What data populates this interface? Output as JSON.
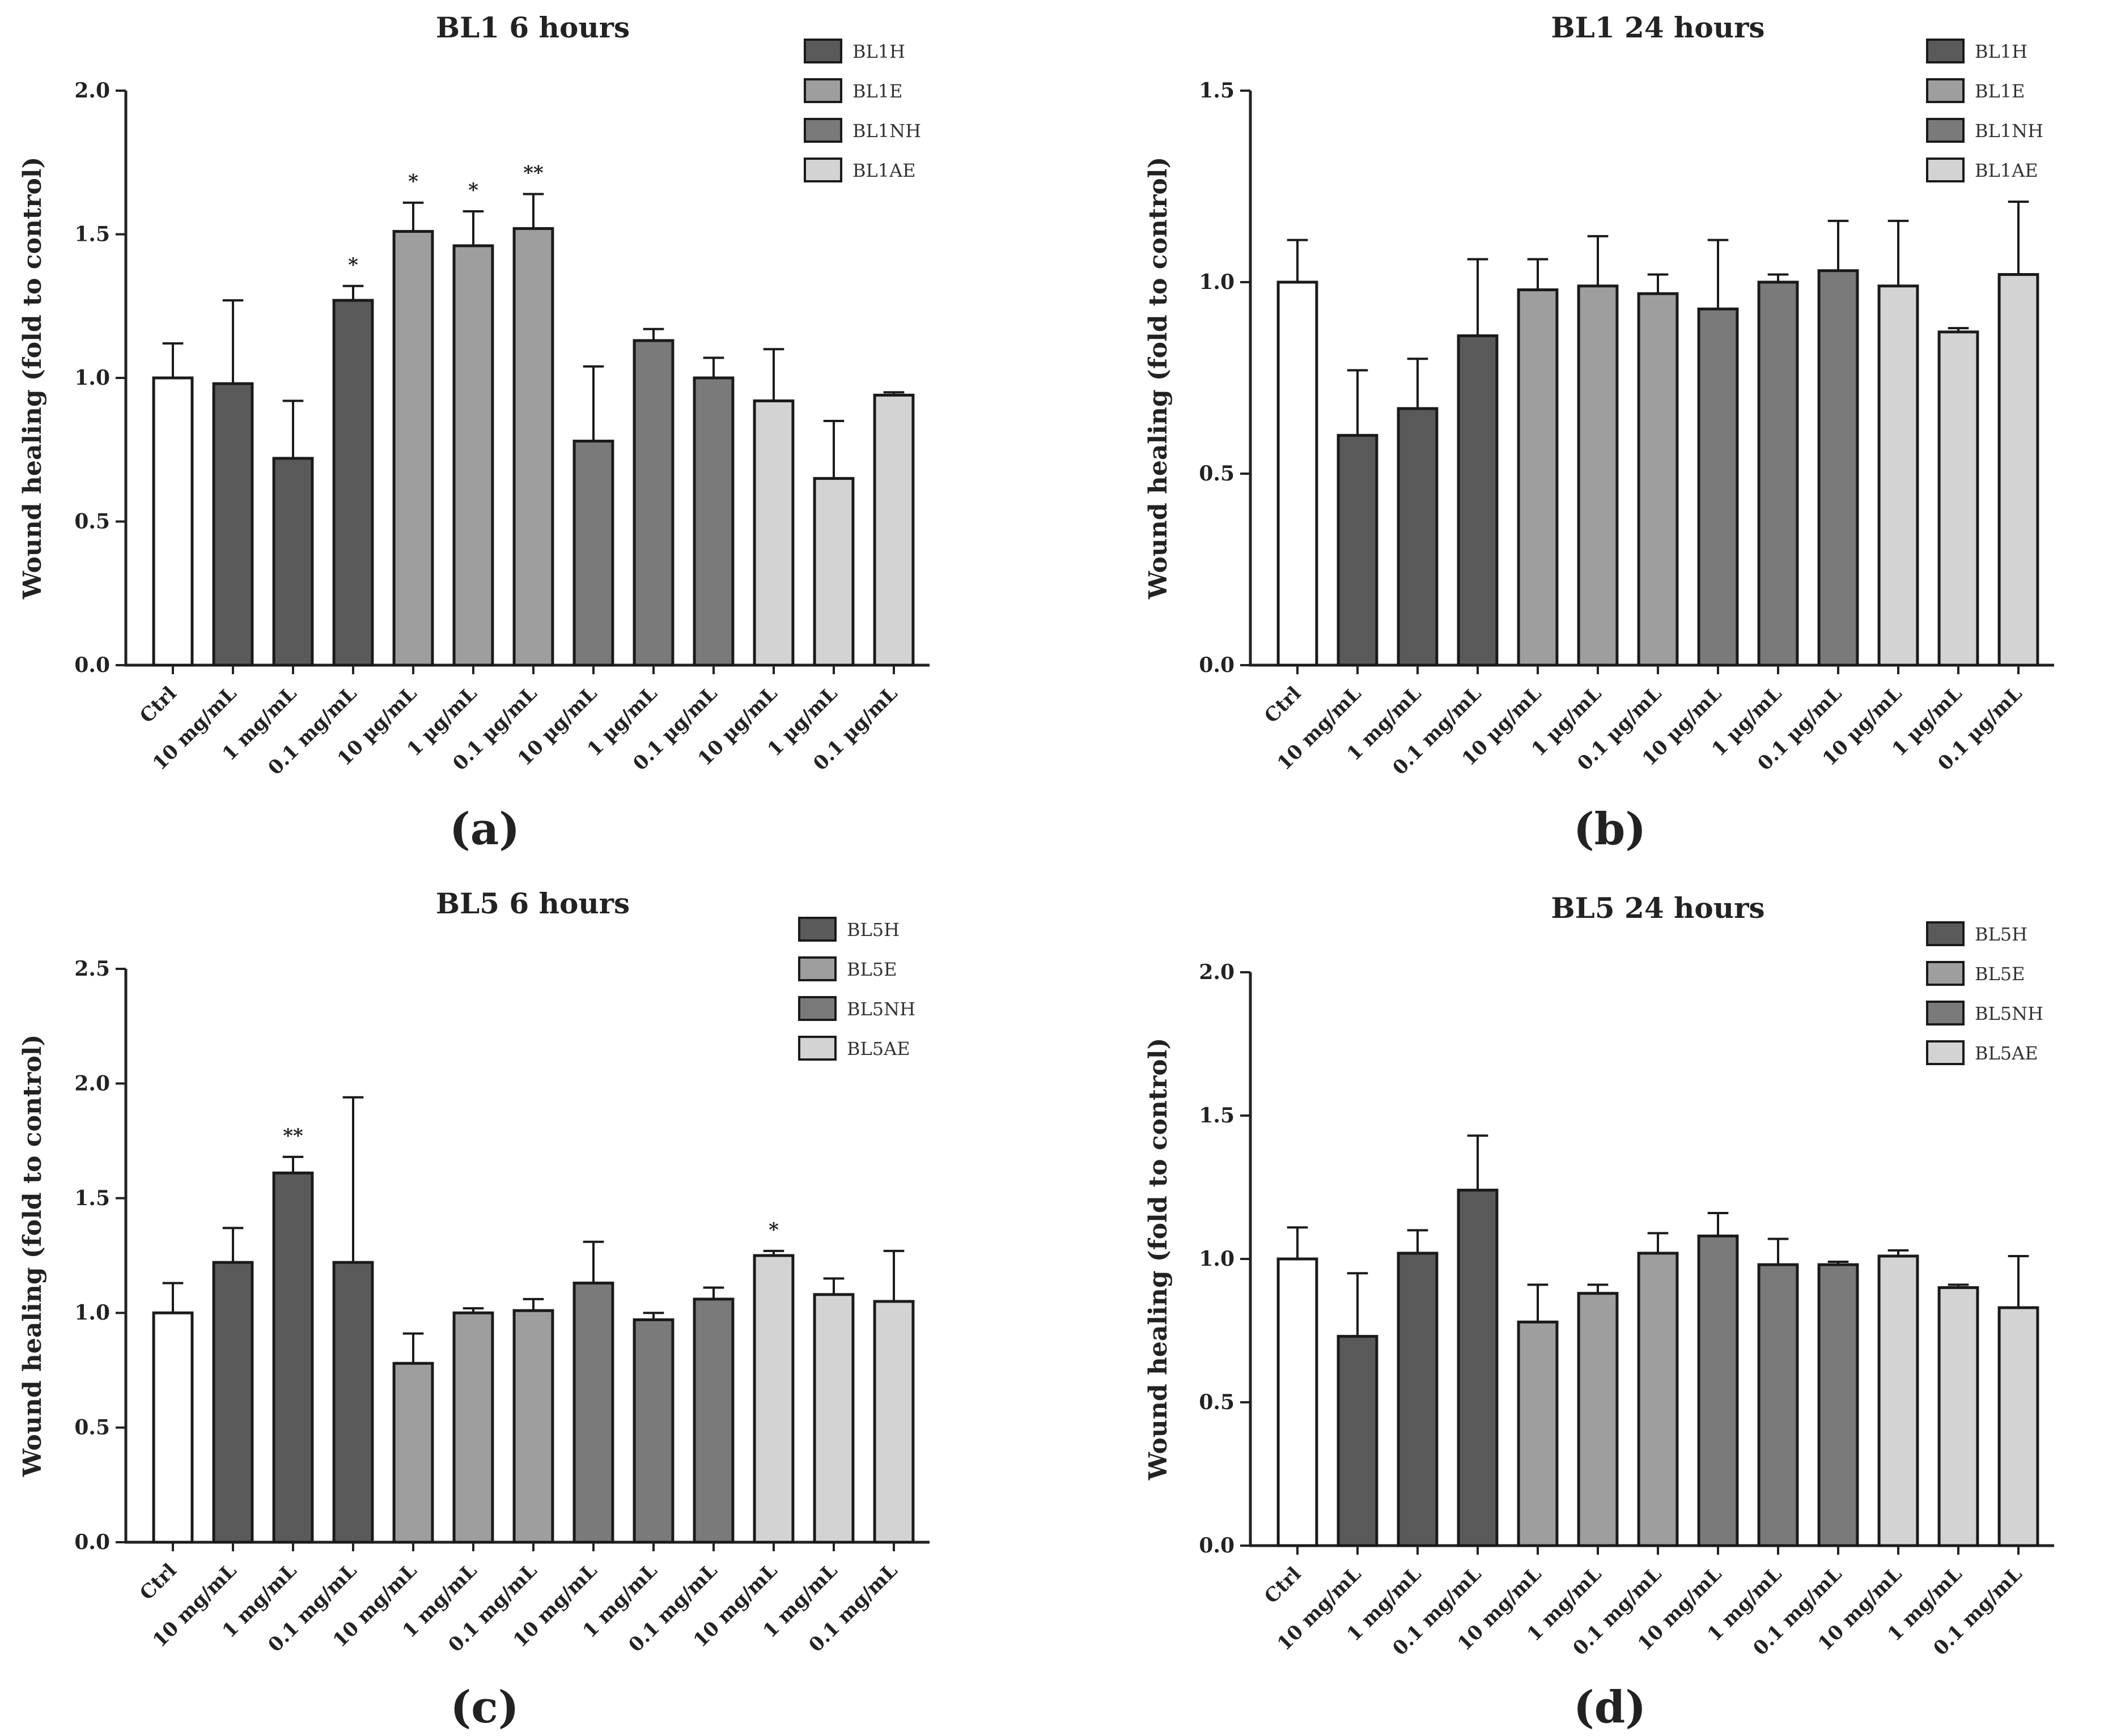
{
  "chart_data": [
    {
      "type": "bar",
      "panel_label": "(a)",
      "title": "BL1 6 hours",
      "ylabel": "Wound healing (fold to control)",
      "xlabel": "",
      "ylim": [
        0,
        2.0
      ],
      "yticks": [
        "0.0",
        "0.5",
        "1.0",
        "1.5",
        "2.0"
      ],
      "grid": false,
      "legend_position": "top-right",
      "legend": [
        {
          "name": "BL1H",
          "color": "#5a5a5a"
        },
        {
          "name": "BL1E",
          "color": "#9e9e9e"
        },
        {
          "name": "BL1NH",
          "color": "#7a7a7a"
        },
        {
          "name": "BL1AE",
          "color": "#d3d3d3"
        }
      ],
      "categories": [
        "Ctrl",
        "10 mg/mL",
        "1 mg/mL",
        "0.1 mg/mL",
        "10 µg/mL",
        "1 µg/mL",
        "0.1 µg/mL",
        "10 µg/mL",
        "1 µg/mL",
        "0.1 µg/mL",
        "10 µg/mL",
        "1 µg/mL",
        "0.1 µg/mL"
      ],
      "series_index": [
        -1,
        0,
        0,
        0,
        1,
        1,
        1,
        2,
        2,
        2,
        3,
        3,
        3
      ],
      "values": [
        1.0,
        0.98,
        0.72,
        1.27,
        1.51,
        1.46,
        1.52,
        0.78,
        1.13,
        1.0,
        0.92,
        0.65,
        0.94
      ],
      "errors": [
        0.12,
        0.29,
        0.2,
        0.05,
        0.1,
        0.12,
        0.12,
        0.26,
        0.04,
        0.07,
        0.18,
        0.2,
        0.01
      ],
      "significance": [
        "",
        "",
        "",
        "*",
        "*",
        "*",
        "**",
        "",
        "",
        "",
        "",
        "",
        ""
      ]
    },
    {
      "type": "bar",
      "panel_label": "(b)",
      "title": "BL1 24 hours",
      "ylabel": "Wound healing (fold to control)",
      "xlabel": "",
      "ylim": [
        0,
        1.5
      ],
      "yticks": [
        "0.0",
        "0.5",
        "1.0",
        "1.5"
      ],
      "grid": false,
      "legend_position": "top-right",
      "legend": [
        {
          "name": "BL1H",
          "color": "#5a5a5a"
        },
        {
          "name": "BL1E",
          "color": "#9e9e9e"
        },
        {
          "name": "BL1NH",
          "color": "#7a7a7a"
        },
        {
          "name": "BL1AE",
          "color": "#d3d3d3"
        }
      ],
      "categories": [
        "Ctrl",
        "10 mg/mL",
        "1 mg/mL",
        "0.1 mg/mL",
        "10 µg/mL",
        "1 µg/mL",
        "0.1 µg/mL",
        "10 µg/mL",
        "1 µg/mL",
        "0.1 µg/mL",
        "10 µg/mL",
        "1 µg/mL",
        "0.1 µg/mL"
      ],
      "series_index": [
        -1,
        0,
        0,
        0,
        1,
        1,
        1,
        2,
        2,
        2,
        3,
        3,
        3
      ],
      "values": [
        1.0,
        0.6,
        0.67,
        0.86,
        0.98,
        0.99,
        0.97,
        0.93,
        1.0,
        1.03,
        0.99,
        0.87,
        1.02
      ],
      "errors": [
        0.11,
        0.17,
        0.13,
        0.2,
        0.08,
        0.13,
        0.05,
        0.18,
        0.02,
        0.13,
        0.17,
        0.01,
        0.19
      ],
      "significance": [
        "",
        "",
        "",
        "",
        "",
        "",
        "",
        "",
        "",
        "",
        "",
        "",
        ""
      ]
    },
    {
      "type": "bar",
      "panel_label": "(c)",
      "title": "BL5 6 hours",
      "ylabel": "Wound healing (fold to control)",
      "xlabel": "",
      "ylim": [
        0,
        2.5
      ],
      "yticks": [
        "0.0",
        "0.5",
        "1.0",
        "1.5",
        "2.0",
        "2.5"
      ],
      "grid": false,
      "legend_position": "top-right",
      "legend": [
        {
          "name": "BL5H",
          "color": "#5a5a5a"
        },
        {
          "name": "BL5E",
          "color": "#9e9e9e"
        },
        {
          "name": "BL5NH",
          "color": "#7a7a7a"
        },
        {
          "name": "BL5AE",
          "color": "#d3d3d3"
        }
      ],
      "categories": [
        "Ctrl",
        "10 mg/mL",
        "1 mg/mL",
        "0.1 mg/mL",
        "10 mg/mL",
        "1 mg/mL",
        "0.1 mg/mL",
        "10 mg/mL",
        "1 mg/mL",
        "0.1 mg/mL",
        "10 mg/mL",
        "1 mg/mL",
        "0.1 mg/mL"
      ],
      "series_index": [
        -1,
        0,
        0,
        0,
        1,
        1,
        1,
        2,
        2,
        2,
        3,
        3,
        3
      ],
      "values": [
        1.0,
        1.22,
        1.61,
        1.22,
        0.78,
        1.0,
        1.01,
        1.13,
        0.97,
        1.06,
        1.25,
        1.08,
        1.05
      ],
      "errors": [
        0.13,
        0.15,
        0.07,
        0.72,
        0.13,
        0.02,
        0.05,
        0.18,
        0.03,
        0.05,
        0.02,
        0.07,
        0.22
      ],
      "significance": [
        "",
        "",
        "**",
        "",
        "",
        "",
        "",
        "",
        "",
        "",
        "*",
        "",
        ""
      ]
    },
    {
      "type": "bar",
      "panel_label": "(d)",
      "title": "BL5 24 hours",
      "ylabel": "Wound healing (fold to control)",
      "xlabel": "",
      "ylim": [
        0,
        2.0
      ],
      "yticks": [
        "0.0",
        "0.5",
        "1.0",
        "1.5",
        "2.0"
      ],
      "grid": false,
      "legend_position": "top-right",
      "legend": [
        {
          "name": "BL5H",
          "color": "#5a5a5a"
        },
        {
          "name": "BL5E",
          "color": "#9e9e9e"
        },
        {
          "name": "BL5NH",
          "color": "#7a7a7a"
        },
        {
          "name": "BL5AE",
          "color": "#d3d3d3"
        }
      ],
      "categories": [
        "Ctrl",
        "10 mg/mL",
        "1 mg/mL",
        "0.1 mg/mL",
        "10 mg/mL",
        "1 mg/mL",
        "0.1 mg/mL",
        "10 mg/mL",
        "1 mg/mL",
        "0.1 mg/mL",
        "10 mg/mL",
        "1 mg/mL",
        "0.1 mg/mL"
      ],
      "series_index": [
        -1,
        0,
        0,
        0,
        1,
        1,
        1,
        2,
        2,
        2,
        3,
        3,
        3
      ],
      "values": [
        1.0,
        0.73,
        1.02,
        1.24,
        0.78,
        0.88,
        1.02,
        1.08,
        0.98,
        0.98,
        1.01,
        0.9,
        0.83
      ],
      "errors": [
        0.11,
        0.22,
        0.08,
        0.19,
        0.13,
        0.03,
        0.07,
        0.08,
        0.09,
        0.01,
        0.02,
        0.01,
        0.18
      ],
      "significance": [
        "",
        "",
        "",
        "",
        "",
        "",
        "",
        "",
        "",
        "",
        "",
        "",
        ""
      ]
    }
  ],
  "styles": {
    "control_color": "#ffffff",
    "stroke_color": "#1a1a1a",
    "axis_color": "#222222"
  }
}
